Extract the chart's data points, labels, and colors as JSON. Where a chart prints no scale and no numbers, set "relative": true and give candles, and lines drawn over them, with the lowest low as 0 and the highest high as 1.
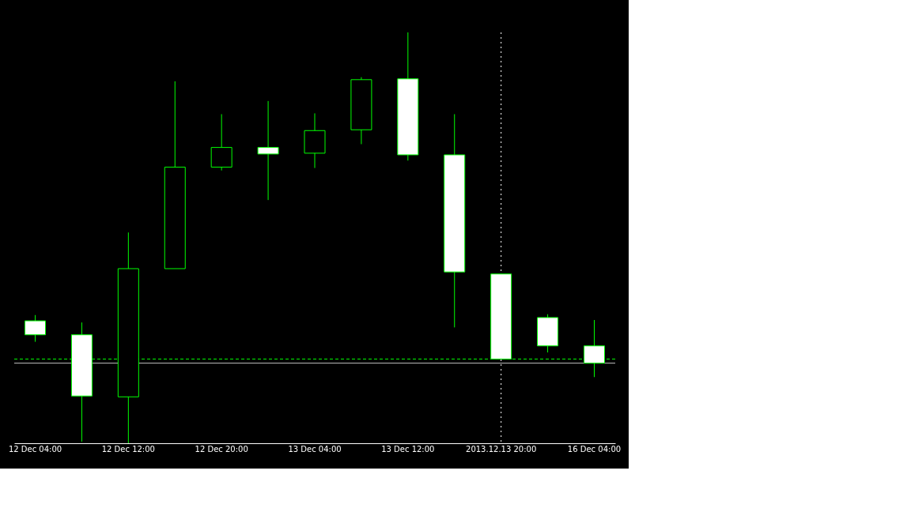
{
  "chart_data": {
    "type": "candlestick",
    "relative": true,
    "grid": false,
    "categories": [
      "12 Dec 04:00",
      null,
      "12 Dec 12:00",
      null,
      "12 Dec 20:00",
      null,
      "13 Dec 04:00",
      null,
      "13 Dec 12:00",
      null,
      "2013.12.13 20:00",
      null,
      "16 Dec 04:00"
    ],
    "ohlc": [
      [
        0.298,
        0.312,
        0.247,
        0.264
      ],
      [
        0.264,
        0.294,
        0.004,
        0.115
      ],
      [
        0.113,
        0.513,
        0.0,
        0.425
      ],
      [
        0.425,
        0.881,
        0.425,
        0.672
      ],
      [
        0.672,
        0.801,
        0.664,
        0.72
      ],
      [
        0.72,
        0.833,
        0.592,
        0.704
      ],
      [
        0.706,
        0.803,
        0.67,
        0.761
      ],
      [
        0.763,
        0.891,
        0.728,
        0.885
      ],
      [
        0.887,
        1.0,
        0.688,
        0.702
      ],
      [
        0.702,
        0.801,
        0.282,
        0.417
      ],
      [
        0.412,
        0.412,
        0.205,
        0.205
      ],
      [
        0.306,
        0.314,
        0.221,
        0.237
      ],
      [
        0.237,
        0.3,
        0.161,
        0.195
      ]
    ],
    "color": "#00ff00",
    "colors": [
      "#ffffff",
      "#ffffff",
      "#000000",
      "#000000",
      "#000000",
      "#ffffff",
      "#000000",
      "#000000",
      "#ffffff",
      "#ffffff",
      "#ffffff",
      "#ffffff",
      "#ffffff"
    ],
    "ref_lines": [
      {
        "axis": "y",
        "value": 0.195,
        "color": "#c0c0c0",
        "line_style": "solid"
      },
      {
        "axis": "y",
        "value": 0.205,
        "color": "#00ff00",
        "line_style": "dashed"
      },
      {
        "axis": "x",
        "value": "2013.12.13 20:00",
        "color": "#ffffff",
        "line_style": "dotted"
      }
    ]
  }
}
